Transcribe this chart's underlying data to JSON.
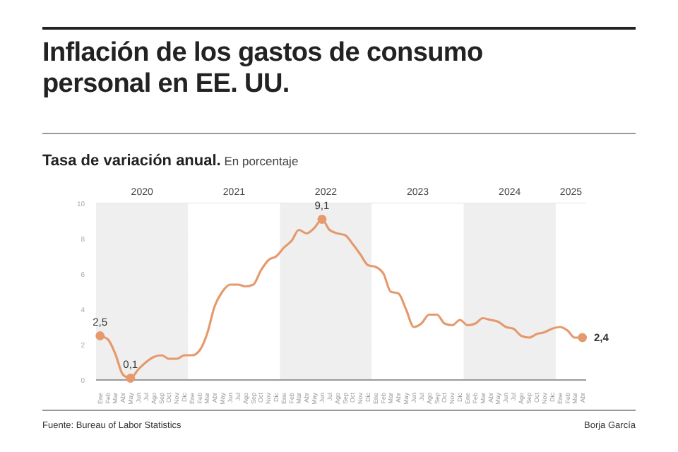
{
  "chart_data": {
    "type": "line",
    "title": "Inflación de los gastos de consumo personal en EE. UU.",
    "subtitle": "Tasa de variación anual. En porcentaje",
    "x": [
      "2020-01",
      "2020-02",
      "2020-03",
      "2020-04",
      "2020-05",
      "2020-06",
      "2020-07",
      "2020-08",
      "2020-09",
      "2020-10",
      "2020-11",
      "2020-12",
      "2021-01",
      "2021-02",
      "2021-03",
      "2021-04",
      "2021-05",
      "2021-06",
      "2021-07",
      "2021-08",
      "2021-09",
      "2021-10",
      "2021-11",
      "2021-12",
      "2022-01",
      "2022-02",
      "2022-03",
      "2022-04",
      "2022-05",
      "2022-06",
      "2022-07",
      "2022-08",
      "2022-09",
      "2022-10",
      "2022-11",
      "2022-12",
      "2023-01",
      "2023-02",
      "2023-03",
      "2023-04",
      "2023-05",
      "2023-06",
      "2023-07",
      "2023-08",
      "2023-09",
      "2023-10",
      "2023-11",
      "2023-12",
      "2024-01",
      "2024-02",
      "2024-03",
      "2024-04",
      "2024-05",
      "2024-06",
      "2024-07",
      "2024-08",
      "2024-09",
      "2024-10",
      "2024-11",
      "2024-12",
      "2025-01",
      "2025-02",
      "2025-03",
      "2025-04"
    ],
    "series": [
      {
        "color": "#e59a6e",
        "values": [
          2.5,
          2.3,
          1.5,
          0.3,
          0.1,
          0.6,
          1.0,
          1.3,
          1.4,
          1.2,
          1.2,
          1.4,
          1.4,
          1.7,
          2.6,
          4.2,
          5.0,
          5.4,
          5.4,
          5.3,
          5.4,
          6.2,
          6.8,
          7.0,
          7.5,
          7.9,
          8.5,
          8.3,
          8.6,
          9.1,
          8.5,
          8.3,
          8.2,
          7.7,
          7.1,
          6.5,
          6.4,
          6.0,
          5.0,
          4.9,
          4.0,
          3.0,
          3.2,
          3.7,
          3.7,
          3.2,
          3.1,
          3.4,
          3.1,
          3.2,
          3.5,
          3.4,
          3.3,
          3.0,
          2.9,
          2.5,
          2.4,
          2.6,
          2.7,
          2.9,
          3.0,
          2.8,
          2.4,
          2.4
        ]
      }
    ],
    "xlim": [
      "2019-12-16",
      "2025-04-16"
    ],
    "xticks": [
      {
        "value": "2020-01",
        "label": "Ene"
      },
      {
        "value": "2020-02",
        "label": "Feb"
      },
      {
        "value": "2020-03",
        "label": "Mar"
      },
      {
        "value": "2020-04",
        "label": "Abr"
      },
      {
        "value": "2020-05",
        "label": "May"
      },
      {
        "value": "2020-06",
        "label": "Jun"
      },
      {
        "value": "2020-07",
        "label": "Jul"
      },
      {
        "value": "2020-08",
        "label": "Ago"
      },
      {
        "value": "2020-09",
        "label": "Sep"
      },
      {
        "value": "2020-10",
        "label": "Oct"
      },
      {
        "value": "2020-11",
        "label": "Nov"
      },
      {
        "value": "2020-12",
        "label": "Dic"
      },
      {
        "value": "2021-01",
        "label": "Ene"
      },
      {
        "value": "2021-02",
        "label": "Feb"
      },
      {
        "value": "2021-03",
        "label": "Mar"
      },
      {
        "value": "2021-04",
        "label": "Abr"
      },
      {
        "value": "2021-05",
        "label": "May"
      },
      {
        "value": "2021-06",
        "label": "Jun"
      },
      {
        "value": "2021-07",
        "label": "Jul"
      },
      {
        "value": "2021-08",
        "label": "Ago"
      },
      {
        "value": "2021-09",
        "label": "Sep"
      },
      {
        "value": "2021-10",
        "label": "Oct"
      },
      {
        "value": "2021-11",
        "label": "Nov"
      },
      {
        "value": "2021-12",
        "label": "Dic"
      },
      {
        "value": "2022-01",
        "label": "Ene"
      },
      {
        "value": "2022-02",
        "label": "Feb"
      },
      {
        "value": "2022-03",
        "label": "Mar"
      },
      {
        "value": "2022-04",
        "label": "Abr"
      },
      {
        "value": "2022-05",
        "label": "May"
      },
      {
        "value": "2022-06",
        "label": "Jun"
      },
      {
        "value": "2022-07",
        "label": "Jul"
      },
      {
        "value": "2022-08",
        "label": "Ago"
      },
      {
        "value": "2022-09",
        "label": "Sep"
      },
      {
        "value": "2022-10",
        "label": "Oct"
      },
      {
        "value": "2022-11",
        "label": "Nov"
      },
      {
        "value": "2022-12",
        "label": "Dic"
      },
      {
        "value": "2023-01",
        "label": "Ene"
      },
      {
        "value": "2023-02",
        "label": "Feb"
      },
      {
        "value": "2023-03",
        "label": "Mar"
      },
      {
        "value": "2023-04",
        "label": "Abr"
      },
      {
        "value": "2023-05",
        "label": "May"
      },
      {
        "value": "2023-06",
        "label": "Jun"
      },
      {
        "value": "2023-07",
        "label": "Jul"
      },
      {
        "value": "2023-08",
        "label": "Ago"
      },
      {
        "value": "2023-09",
        "label": "Sep"
      },
      {
        "value": "2023-10",
        "label": "Oct"
      },
      {
        "value": "2023-11",
        "label": "Nov"
      },
      {
        "value": "2023-12",
        "label": "Dic"
      },
      {
        "value": "2024-01",
        "label": "Ene"
      },
      {
        "value": "2024-02",
        "label": "Feb"
      },
      {
        "value": "2024-03",
        "label": "Mar"
      },
      {
        "value": "2024-04",
        "label": "Abr"
      },
      {
        "value": "2024-05",
        "label": "May"
      },
      {
        "value": "2024-06",
        "label": "Jun"
      },
      {
        "value": "2024-07",
        "label": "Jul"
      },
      {
        "value": "2024-08",
        "label": "Ago"
      },
      {
        "value": "2024-09",
        "label": "Sep"
      },
      {
        "value": "2024-10",
        "label": "Oct"
      },
      {
        "value": "2024-11",
        "label": "Nov"
      },
      {
        "value": "2024-12",
        "label": "Dic"
      },
      {
        "value": "2025-01",
        "label": "Ene"
      },
      {
        "value": "2025-02",
        "label": "Feb"
      },
      {
        "value": "2025-03",
        "label": "Mar"
      },
      {
        "value": "2025-04",
        "label": "Abr"
      }
    ],
    "ylim": [
      0,
      10
    ],
    "yticks": [
      0,
      2,
      4,
      6,
      8,
      10
    ],
    "grid": "y",
    "marker": "none",
    "line_style": "solid",
    "bands": [
      {
        "axis": "x",
        "from": "2019-12-16",
        "to": "2020-12-16",
        "label": "2020",
        "color": "#efefef"
      },
      {
        "axis": "x",
        "from": "2020-12-16",
        "to": "2021-12-16",
        "label": "2021",
        "color": "#ffffff"
      },
      {
        "axis": "x",
        "from": "2021-12-16",
        "to": "2022-12-16",
        "label": "2022",
        "color": "#efefef"
      },
      {
        "axis": "x",
        "from": "2022-12-16",
        "to": "2023-12-16",
        "label": "2023",
        "color": "#ffffff"
      },
      {
        "axis": "x",
        "from": "2023-12-16",
        "to": "2024-12-16",
        "label": "2024",
        "color": "#efefef"
      },
      {
        "axis": "x",
        "from": "2024-12-16",
        "to": "2025-04-16",
        "label": "2025",
        "color": "#ffffff"
      }
    ],
    "annotations": [
      {
        "text": "2,5",
        "x": "2020-01",
        "y": 2.5
      },
      {
        "text": "0,1",
        "x": "2020-05",
        "y": 0.1
      },
      {
        "text": "9,1",
        "x": "2022-06",
        "y": 9.1
      },
      {
        "text": "2,4",
        "x": "2025-04",
        "y": 2.4
      },
      "Fuente: Bureau of Labor Statistics",
      "Borja García"
    ]
  }
}
